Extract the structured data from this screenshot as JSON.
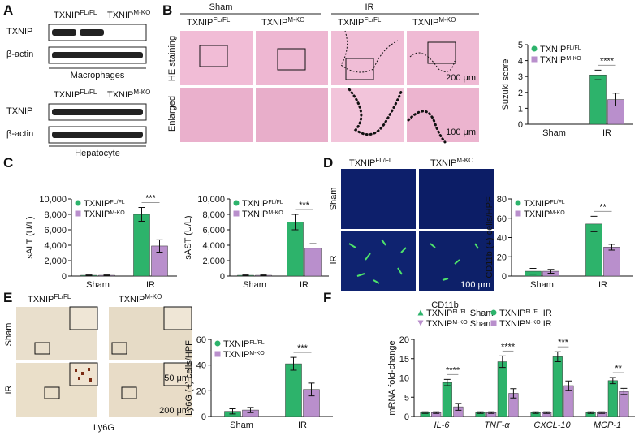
{
  "panel_labels": [
    "A",
    "B",
    "C",
    "D",
    "E",
    "F"
  ],
  "genotypes": [
    {
      "name": "TXNIP",
      "superscript": "FL/FL"
    },
    {
      "name": "TXNIP",
      "superscript": "M-KO"
    }
  ],
  "panel_a": {
    "rows": [
      "TXNIP",
      "β-actin"
    ],
    "blots": [
      "Macrophages",
      "Hepatocyte"
    ]
  },
  "panel_b": {
    "groups": [
      "Sham",
      "IR"
    ],
    "rows": [
      "HE staining",
      "Enlarged"
    ],
    "scale_bars": [
      "200 μm",
      "100 μm"
    ]
  },
  "panel_d": {
    "rows": [
      "Sham",
      "IR"
    ],
    "stain": "CD11b",
    "scale_bar": "100 μm"
  },
  "panel_e": {
    "rows": [
      "Sham",
      "IR"
    ],
    "stain": "Ly6G",
    "scale_bars": [
      "50 μm",
      "200 μm"
    ]
  },
  "chart_data": [
    {
      "type": "bar",
      "y_label": "Suzuki score",
      "categories": [
        "Sham",
        "IR"
      ],
      "series": [
        {
          "name": "TXNIP",
          "superscript": "FL/FL",
          "marker": "circle",
          "color": "#2db36b",
          "values": [
            0,
            3.1
          ],
          "errors": [
            0,
            0.3
          ]
        },
        {
          "name": "TXNIP",
          "superscript": "M-KO",
          "marker": "square",
          "color": "#b98fcc",
          "values": [
            0,
            1.55
          ],
          "errors": [
            0,
            0.4
          ]
        }
      ],
      "ylim": [
        0,
        5
      ],
      "yticks": [
        0,
        1,
        2,
        3,
        4,
        5
      ],
      "legend": "upper left",
      "significance": [
        null,
        "****"
      ]
    },
    {
      "type": "bar",
      "y_label": "sALT (U/L)",
      "categories": [
        "Sham",
        "IR"
      ],
      "series": [
        {
          "name": "TXNIP",
          "superscript": "FL/FL",
          "marker": "circle",
          "color": "#2db36b",
          "values": [
            100,
            8000
          ],
          "errors": [
            50,
            900
          ]
        },
        {
          "name": "TXNIP",
          "superscript": "M-KO",
          "marker": "square",
          "color": "#b98fcc",
          "values": [
            100,
            3900
          ],
          "errors": [
            50,
            800
          ]
        }
      ],
      "ylim": [
        0,
        10000
      ],
      "yticks": [
        0,
        {
          "value": 2000,
          "label": "2,000"
        },
        {
          "value": 4000,
          "label": "4,000"
        },
        {
          "value": 6000,
          "label": "6,000"
        },
        {
          "value": 8000,
          "label": "8,000"
        },
        {
          "value": 10000,
          "label": "10,000"
        }
      ],
      "legend": "upper left",
      "significance": [
        null,
        "***"
      ]
    },
    {
      "type": "bar",
      "y_label": "sAST (U/L)",
      "categories": [
        "Sham",
        "IR"
      ],
      "series": [
        {
          "name": "TXNIP",
          "superscript": "FL/FL",
          "marker": "circle",
          "color": "#2db36b",
          "values": [
            100,
            7000
          ],
          "errors": [
            50,
            1000
          ]
        },
        {
          "name": "TXNIP",
          "superscript": "M-KO",
          "marker": "square",
          "color": "#b98fcc",
          "values": [
            100,
            3600
          ],
          "errors": [
            50,
            600
          ]
        }
      ],
      "ylim": [
        0,
        10000
      ],
      "yticks": [
        0,
        {
          "value": 2000,
          "label": "2,000"
        },
        {
          "value": 4000,
          "label": "4,000"
        },
        {
          "value": 6000,
          "label": "6,000"
        },
        {
          "value": 8000,
          "label": "8,000"
        },
        {
          "value": 10000,
          "label": "10,000"
        }
      ],
      "legend": "upper left",
      "significance": [
        null,
        "***"
      ]
    },
    {
      "type": "bar",
      "y_label": "CD11b (+) cells/HPF",
      "categories": [
        "Sham",
        "IR"
      ],
      "series": [
        {
          "name": "TXNIP",
          "superscript": "FL/FL",
          "marker": "circle",
          "color": "#2db36b",
          "values": [
            5,
            54
          ],
          "errors": [
            3,
            8
          ]
        },
        {
          "name": "TXNIP",
          "superscript": "M-KO",
          "marker": "square",
          "color": "#b98fcc",
          "values": [
            5,
            30
          ],
          "errors": [
            2,
            3
          ]
        }
      ],
      "ylim": [
        0,
        80
      ],
      "yticks": [
        0,
        20,
        40,
        60,
        80
      ],
      "legend": "upper left",
      "significance": [
        null,
        "**"
      ]
    },
    {
      "type": "bar",
      "y_label": "Ly6G (+) cells/HPF",
      "categories": [
        "Sham",
        "IR"
      ],
      "series": [
        {
          "name": "TXNIP",
          "superscript": "FL/FL",
          "marker": "circle",
          "color": "#2db36b",
          "values": [
            4,
            41
          ],
          "errors": [
            2,
            5
          ]
        },
        {
          "name": "TXNIP",
          "superscript": "M-KO",
          "marker": "square",
          "color": "#b98fcc",
          "values": [
            5,
            21
          ],
          "errors": [
            2,
            5
          ]
        }
      ],
      "ylim": [
        0,
        60
      ],
      "yticks": [
        0,
        20,
        40,
        60
      ],
      "legend": "upper left",
      "significance": [
        null,
        "***"
      ]
    },
    {
      "type": "bar",
      "y_label": "mRNA fold-change",
      "categories": [
        "IL-6",
        "TNF-α",
        "CXCL-10",
        "MCP-1"
      ],
      "series": [
        {
          "name": "TXNIP",
          "superscript": "FL/FL",
          "suffix": " Sham",
          "marker": "triangle",
          "color": "#2db36b",
          "values": [
            1,
            1,
            1,
            1
          ],
          "errors": [
            0.2,
            0.2,
            0.2,
            0.2
          ]
        },
        {
          "name": "TXNIP",
          "superscript": "M-KO",
          "suffix": " Sham",
          "marker": "triangle-down",
          "color": "#b98fcc",
          "values": [
            1,
            1,
            1,
            1
          ],
          "errors": [
            0.2,
            0.2,
            0.2,
            0.2
          ]
        },
        {
          "name": "TXNIP",
          "superscript": "FL/FL",
          "suffix": " IR",
          "marker": "circle",
          "color": "#2db36b",
          "values": [
            8.8,
            14.2,
            15.5,
            9.3
          ],
          "errors": [
            0.8,
            1.5,
            1.3,
            0.8
          ]
        },
        {
          "name": "TXNIP",
          "superscript": "M-KO",
          "suffix": " IR",
          "marker": "square",
          "color": "#b98fcc",
          "values": [
            2.5,
            6,
            8,
            6.5
          ],
          "errors": [
            0.9,
            1.2,
            1.2,
            0.8
          ]
        }
      ],
      "ylim": [
        0,
        20
      ],
      "yticks": [
        0,
        5,
        10,
        15,
        20
      ],
      "legend": "upper left",
      "significance": [
        "****",
        "****",
        "***",
        "**"
      ]
    }
  ]
}
